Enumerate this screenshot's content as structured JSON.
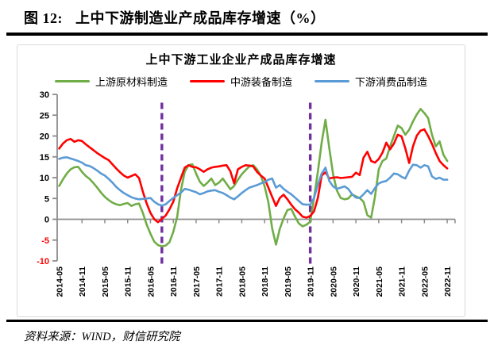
{
  "page": {
    "figure_label": "图 12:",
    "figure_title": "上中下游制造业产成品库存增速（%）",
    "source_note": "资料来源：WIND，财信研究院"
  },
  "chart_data": {
    "type": "line",
    "title": "上中下游工业企业产成品库存增速",
    "x_start": "2014-05",
    "x_end": "2022-11",
    "x_frequency": "monthly",
    "x_tick_labels": [
      "2014-05",
      "2014-11",
      "2015-05",
      "2015-11",
      "2016-05",
      "2016-11",
      "2017-05",
      "2017-11",
      "2018-05",
      "2018-11",
      "2019-05",
      "2019-11",
      "2020-05",
      "2020-11",
      "2021-05",
      "2021-11",
      "2022-05",
      "2022-11"
    ],
    "y_ticks": [
      30,
      25,
      20,
      15,
      10,
      5,
      0,
      -5,
      -10
    ],
    "ylim": [
      -10,
      30
    ],
    "grid": false,
    "legend_position": "top",
    "axis_color": "#8c8c8c",
    "negative_tick_color": "#ff0000",
    "vlines": [
      {
        "label": "2016-08",
        "month_index": 27,
        "color": "#7030a0",
        "style": "dashed"
      },
      {
        "label": "2019-11",
        "month_index": 66,
        "color": "#7030a0",
        "style": "dashed"
      }
    ],
    "series": [
      {
        "name": "上游原材料制造",
        "color": "#70ad47",
        "values": [
          8,
          9.6,
          11,
          12,
          12.5,
          12.6,
          11.4,
          10.4,
          9.7,
          8.7,
          7.6,
          6.4,
          5.4,
          4.6,
          4,
          3.6,
          3.4,
          3.7,
          3.9,
          3.2,
          3.6,
          3.8,
          1.5,
          -1.3,
          -3.5,
          -5.4,
          -6.2,
          -6.5,
          -6.3,
          -5.5,
          -3,
          0.5,
          7,
          11.4,
          13,
          13.2,
          11,
          9,
          8,
          8.8,
          9.8,
          8.2,
          8.8,
          9.8,
          8.5,
          7.2,
          8,
          9.5,
          10.8,
          11.8,
          12.7,
          13,
          12,
          10.5,
          7.9,
          4.1,
          -2.2,
          -6.1,
          -2.3,
          0.2,
          2.2,
          2.5,
          0.6,
          -1,
          -1.7,
          -1.3,
          -0.6,
          5.1,
          11.4,
          18.4,
          23.9,
          17.1,
          10.8,
          6.9,
          5.1,
          4.8,
          5,
          6,
          5.5,
          5.1,
          4.2,
          1,
          0.4,
          5.4,
          12,
          14,
          14.6,
          17.5,
          20,
          22.5,
          21.9,
          20.3,
          21.5,
          23.5,
          25.2,
          26.5,
          25.5,
          24.3,
          20.3,
          17.5,
          18.7,
          15.5,
          14
        ]
      },
      {
        "name": "中游装备制造",
        "color": "#ff0000",
        "values": [
          17,
          18.2,
          19,
          19.3,
          18.6,
          19,
          18.8,
          18,
          17.3,
          16.6,
          15.9,
          15.3,
          14.7,
          14.2,
          13.2,
          12.2,
          11.3,
          10.5,
          10,
          10.4,
          10.8,
          9.9,
          6.6,
          3.8,
          1.5,
          0,
          -0.7,
          0.1,
          0.9,
          2.4,
          4.2,
          7.4,
          9.9,
          12.4,
          13,
          12.6,
          12.5,
          12,
          11.4,
          12,
          12.4,
          12.6,
          12.7,
          12.9,
          13,
          11.5,
          8.6,
          12,
          12.6,
          13,
          12.9,
          12.7,
          11.4,
          10.5,
          9.8,
          7.6,
          5.4,
          3.2,
          5.1,
          5.9,
          4.8,
          3.5,
          2.4,
          1.6,
          0.6,
          0.4,
          0.8,
          1.9,
          5.1,
          10.5,
          11.3,
          9.8,
          10,
          10.1,
          9.9,
          10,
          10.1,
          10.2,
          11.2,
          10.6,
          14.8,
          16.2,
          14,
          13.6,
          14.5,
          16,
          18.4,
          16.8,
          18.2,
          20.3,
          19.9,
          17,
          13.5,
          17.5,
          20.1,
          21.3,
          21.6,
          20,
          18.1,
          15.9,
          14,
          13,
          12.2
        ]
      },
      {
        "name": "下游消费品制造",
        "color": "#5b9bd5",
        "values": [
          14.5,
          14.8,
          14.9,
          14.6,
          14.3,
          14,
          13.6,
          13,
          12.8,
          12.3,
          11.7,
          11,
          10.5,
          9.7,
          8.8,
          7.8,
          7,
          6.3,
          5.8,
          5.3,
          5,
          4.8,
          4.9,
          5,
          5.1,
          4.2,
          3.6,
          3.3,
          3.6,
          4.4,
          5.1,
          5.8,
          6.4,
          7.3,
          7.1,
          6.8,
          6.5,
          6,
          6.3,
          6.7,
          6.9,
          7,
          6.6,
          6.3,
          5.8,
          5.2,
          4.8,
          5.5,
          6.3,
          7,
          7.6,
          7.9,
          8.2,
          8.6,
          8.9,
          9.5,
          9.8,
          7.6,
          8.2,
          7.3,
          6.6,
          6,
          5.2,
          4.4,
          3.6,
          3.5,
          3.5,
          5.1,
          8.3,
          11,
          12.4,
          9.2,
          7.9,
          7.3,
          7.6,
          7.9,
          7.3,
          6,
          5.2,
          5.1,
          6,
          7,
          6.1,
          7.5,
          8.6,
          9,
          9.2,
          10,
          11,
          10.8,
          10.2,
          9.8,
          11.7,
          13.1,
          13,
          12.4,
          13,
          12.7,
          10.3,
          9.7,
          10,
          9.5,
          9.5
        ]
      }
    ]
  }
}
